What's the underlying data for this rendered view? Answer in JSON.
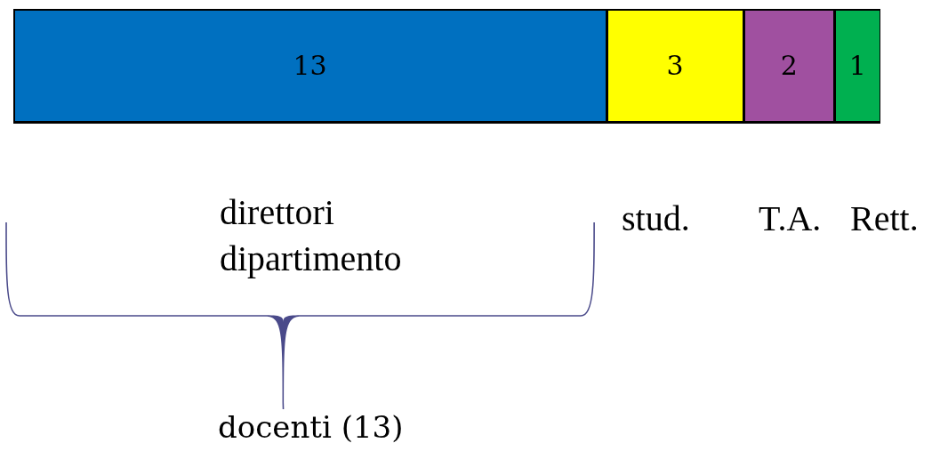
{
  "chart_data": {
    "type": "bar",
    "orientation": "horizontal",
    "stacked": true,
    "categories": [
      null
    ],
    "series": [
      {
        "name": "direttori dipartimento",
        "color": "#0070c0",
        "values": [
          13
        ]
      },
      {
        "name": "stud.",
        "color": "#ffff00",
        "values": [
          3
        ]
      },
      {
        "name": "T.A.",
        "color": "#a050a0",
        "values": [
          2
        ]
      },
      {
        "name": "Rett.",
        "color": "#00b050",
        "values": [
          1
        ]
      }
    ],
    "data_labels": true,
    "legend": false,
    "tick_labels": false,
    "annotations": [
      "docenti (13)"
    ]
  }
}
